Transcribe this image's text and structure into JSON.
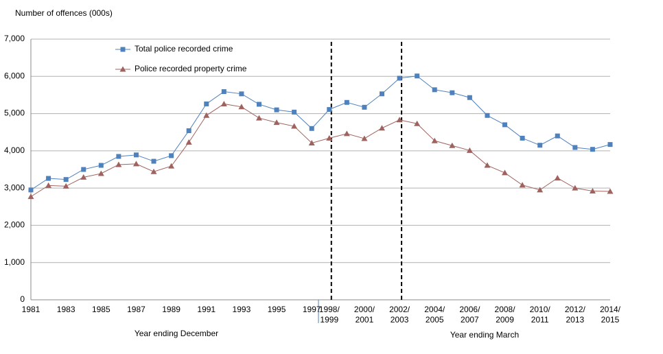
{
  "chart_data": {
    "type": "line",
    "y_label": "Number of offences (000s)",
    "annotations": [
      "Year ending December",
      "Year ending March"
    ],
    "categories": [
      "1981",
      null,
      "1983",
      null,
      "1985",
      null,
      "1987",
      null,
      "1989",
      null,
      "1991",
      null,
      "1993",
      null,
      "1995",
      null,
      "1997",
      "1998/\n1999",
      null,
      "2000/\n2001",
      null,
      "2002/\n2003",
      null,
      "2004/\n2005",
      null,
      "2006/\n2007",
      null,
      "2008/\n2009",
      null,
      "2010/\n2011",
      null,
      "2012/\n2013",
      null,
      "2014/\n2015"
    ],
    "series": [
      {
        "name": "Total police recorded crime",
        "color": "#4f81bd",
        "marker": "square",
        "values": [
          2950,
          3260,
          3230,
          3500,
          3610,
          3850,
          3890,
          3720,
          3870,
          4540,
          5260,
          5590,
          5530,
          5250,
          5100,
          5040,
          4600,
          5110,
          5300,
          5170,
          5530,
          5950,
          6010,
          5640,
          5560,
          5430,
          4950,
          4700,
          4340,
          4150,
          4400,
          4090,
          4040,
          4170
        ]
      },
      {
        "name": "Police recorded property crime",
        "color": "#a0625f",
        "marker": "triangle",
        "values": [
          2770,
          3070,
          3050,
          3290,
          3390,
          3630,
          3650,
          3440,
          3590,
          4230,
          4950,
          5260,
          5180,
          4880,
          4760,
          4660,
          4210,
          4340,
          4460,
          4330,
          4610,
          4830,
          4730,
          4270,
          4140,
          4010,
          3610,
          3410,
          3080,
          2950,
          3270,
          3000,
          2920,
          2910
        ]
      }
    ],
    "ylim": [
      0,
      7000
    ],
    "yticks": [
      0,
      {
        "value": 1000,
        "label": "1,000"
      },
      {
        "value": 2000,
        "label": "2,000"
      },
      {
        "value": 3000,
        "label": "3,000"
      },
      {
        "value": 4000,
        "label": "4,000"
      },
      {
        "value": 5000,
        "label": "5,000"
      },
      {
        "value": 6000,
        "label": "6,000"
      },
      {
        "value": 7000,
        "label": "7,000"
      }
    ],
    "grid": true,
    "legend": "top-left"
  }
}
